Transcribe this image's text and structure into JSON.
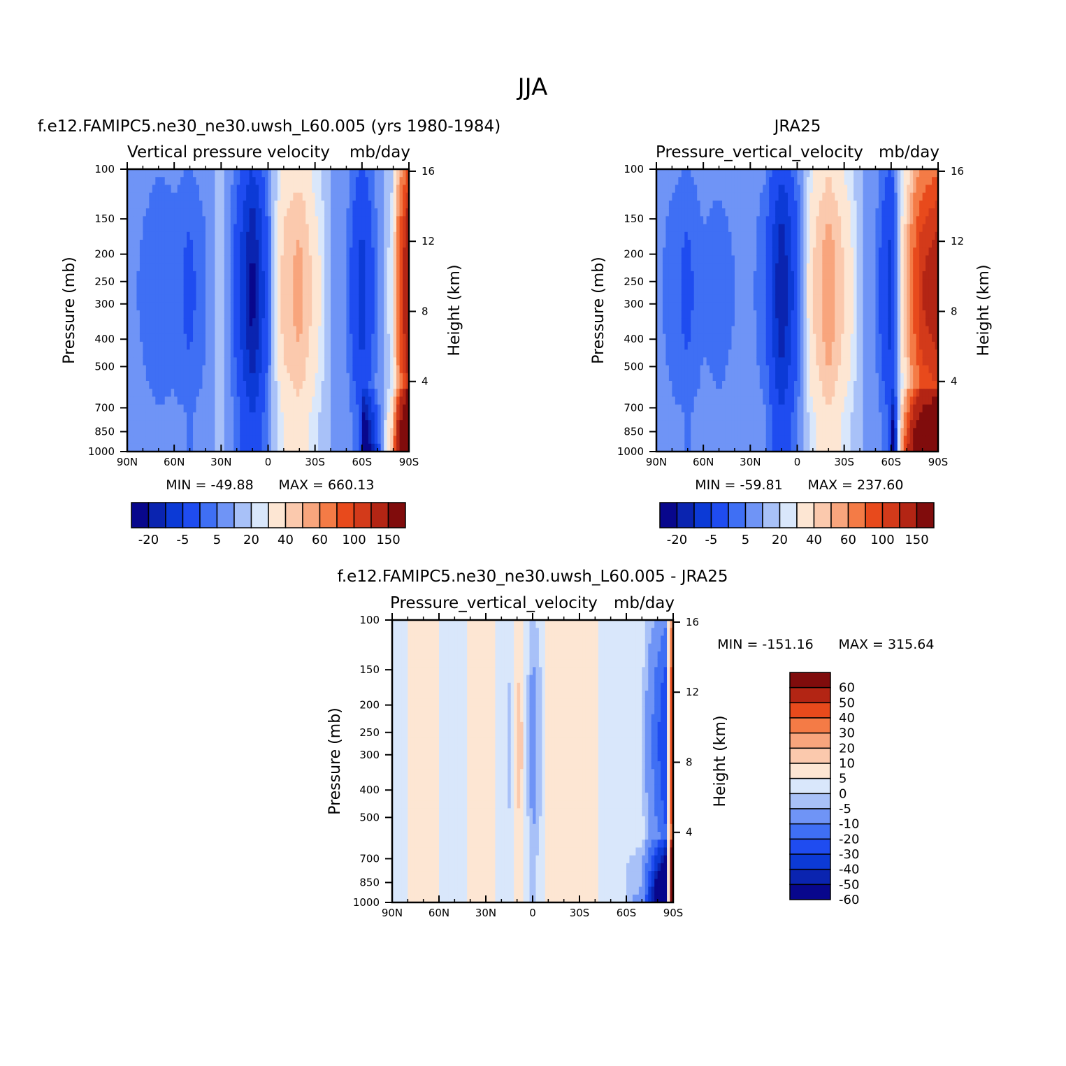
{
  "figure": {
    "title": "JJA"
  },
  "colors": {
    "contour_palette_panels": [
      "#08078c",
      "#0a24b0",
      "#0c3ad6",
      "#1f4cf0",
      "#3f6ff4",
      "#6f94f6",
      "#a8c1f8",
      "#d9e7fb",
      "#fde6d3",
      "#fbc9ad",
      "#f8a57d",
      "#f47b46",
      "#e84a1c",
      "#d33a1a",
      "#b32514",
      "#800c0c"
    ],
    "contour_palette_diff": [
      "#08078c",
      "#0a24b0",
      "#0c3ad6",
      "#1f4cf0",
      "#3f6ff4",
      "#6f94f6",
      "#a8c1f8",
      "#d9e7fb",
      "#fde6d3",
      "#fbc9ad",
      "#f8a57d",
      "#f47b46",
      "#e84a1c",
      "#b32514",
      "#800c0c"
    ]
  },
  "chart_data": [
    {
      "type": "heatmap",
      "id": "model",
      "title": "f.e12.FAMIPC5.ne30_ne30.uwsh_L60.005 (yrs 1980-1984)",
      "subtitle_left": "Vertical pressure velocity",
      "units": "mb/day",
      "xlabel": "",
      "ylabel": "Pressure (mb)",
      "ylabel_right": "Height (km)",
      "x_ticks": [
        "90N",
        "60N",
        "30N",
        "0",
        "30S",
        "60S",
        "90S"
      ],
      "x_tick_values": [
        90,
        60,
        30,
        0,
        -30,
        -60,
        -90
      ],
      "y_ticks": [
        100,
        150,
        200,
        250,
        300,
        400,
        500,
        700,
        850,
        1000
      ],
      "y_right_ticks": [
        16,
        12,
        8,
        4
      ],
      "ylim": [
        1000,
        100
      ],
      "min_label": "MIN = -49.88",
      "max_label": "MAX = 660.13",
      "colorbar_levels": [
        "-20",
        "-5",
        "5",
        "20",
        "40",
        "60",
        "100",
        "150"
      ],
      "lat_profile": [
        {
          "lat": 90,
          "omega": -3
        },
        {
          "lat": 80,
          "omega": -6
        },
        {
          "lat": 70,
          "omega": -10
        },
        {
          "lat": 60,
          "omega": -8
        },
        {
          "lat": 50,
          "omega": -12
        },
        {
          "lat": 40,
          "omega": -6
        },
        {
          "lat": 30,
          "omega": 4
        },
        {
          "lat": 20,
          "omega": -14
        },
        {
          "lat": 10,
          "omega": -45
        },
        {
          "lat": 0,
          "omega": -10
        },
        {
          "lat": -10,
          "omega": 25
        },
        {
          "lat": -20,
          "omega": 35
        },
        {
          "lat": -30,
          "omega": 15
        },
        {
          "lat": -40,
          "omega": 0
        },
        {
          "lat": -50,
          "omega": -5
        },
        {
          "lat": -60,
          "omega": -25
        },
        {
          "lat": -70,
          "omega": -5
        },
        {
          "lat": -80,
          "omega": 10
        },
        {
          "lat": -90,
          "omega": 150
        }
      ]
    },
    {
      "type": "heatmap",
      "id": "obs",
      "title": "JRA25",
      "subtitle_left": "Pressure_vertical_velocity",
      "units": "mb/day",
      "xlabel": "",
      "ylabel": "Pressure (mb)",
      "ylabel_right": "Height (km)",
      "x_ticks": [
        "90N",
        "60N",
        "30N",
        "0",
        "30S",
        "60S",
        "90S"
      ],
      "x_tick_values": [
        90,
        60,
        30,
        0,
        -30,
        -60,
        -90
      ],
      "y_ticks": [
        100,
        150,
        200,
        250,
        300,
        400,
        500,
        700,
        850,
        1000
      ],
      "y_right_ticks": [
        16,
        12,
        8,
        4
      ],
      "ylim": [
        1000,
        100
      ],
      "min_label": "MIN = -59.81",
      "max_label": "MAX = 237.60",
      "colorbar_levels": [
        "-20",
        "-5",
        "5",
        "20",
        "40",
        "60",
        "100",
        "150"
      ],
      "lat_profile": [
        {
          "lat": 90,
          "omega": -3
        },
        {
          "lat": 80,
          "omega": -8
        },
        {
          "lat": 70,
          "omega": -12
        },
        {
          "lat": 60,
          "omega": -6
        },
        {
          "lat": 50,
          "omega": -8
        },
        {
          "lat": 40,
          "omega": -5
        },
        {
          "lat": 30,
          "omega": -3
        },
        {
          "lat": 20,
          "omega": -10
        },
        {
          "lat": 10,
          "omega": -40
        },
        {
          "lat": 0,
          "omega": -12
        },
        {
          "lat": -10,
          "omega": 20
        },
        {
          "lat": -20,
          "omega": 40
        },
        {
          "lat": -30,
          "omega": 20
        },
        {
          "lat": -40,
          "omega": 2
        },
        {
          "lat": -50,
          "omega": -5
        },
        {
          "lat": -60,
          "omega": -25
        },
        {
          "lat": -70,
          "omega": 30
        },
        {
          "lat": -80,
          "omega": 100
        },
        {
          "lat": -90,
          "omega": 120
        }
      ]
    },
    {
      "type": "heatmap",
      "id": "diff",
      "title": "f.e12.FAMIPC5.ne30_ne30.uwsh_L60.005 - JRA25",
      "subtitle_left": "Pressure_vertical_velocity",
      "units": "mb/day",
      "xlabel": "",
      "ylabel": "Pressure (mb)",
      "ylabel_right": "Height (km)",
      "x_ticks": [
        "90N",
        "60N",
        "30N",
        "0",
        "30S",
        "60S",
        "90S"
      ],
      "x_tick_values": [
        90,
        60,
        30,
        0,
        -30,
        -60,
        -90
      ],
      "y_ticks": [
        100,
        150,
        200,
        250,
        300,
        400,
        500,
        700,
        850,
        1000
      ],
      "y_right_ticks": [
        16,
        12,
        8,
        4
      ],
      "ylim": [
        1000,
        100
      ],
      "min_label": "MIN = -151.16",
      "max_label": "MAX = 315.64",
      "colorbar_levels": [
        "60",
        "50",
        "40",
        "30",
        "20",
        "10",
        "5",
        "0",
        "-5",
        "-10",
        "-20",
        "-30",
        "-40",
        "-50",
        "-60"
      ],
      "lat_profile": [
        {
          "lat": 90,
          "omega": -2
        },
        {
          "lat": 70,
          "omega": 2
        },
        {
          "lat": 50,
          "omega": -2
        },
        {
          "lat": 30,
          "omega": 3
        },
        {
          "lat": 15,
          "omega": -6
        },
        {
          "lat": 8,
          "omega": 8
        },
        {
          "lat": 0,
          "omega": -15
        },
        {
          "lat": -10,
          "omega": 2
        },
        {
          "lat": -30,
          "omega": 3
        },
        {
          "lat": -50,
          "omega": -2
        },
        {
          "lat": -70,
          "omega": -4
        },
        {
          "lat": -85,
          "omega": -40
        },
        {
          "lat": -90,
          "omega": 60
        }
      ]
    }
  ]
}
